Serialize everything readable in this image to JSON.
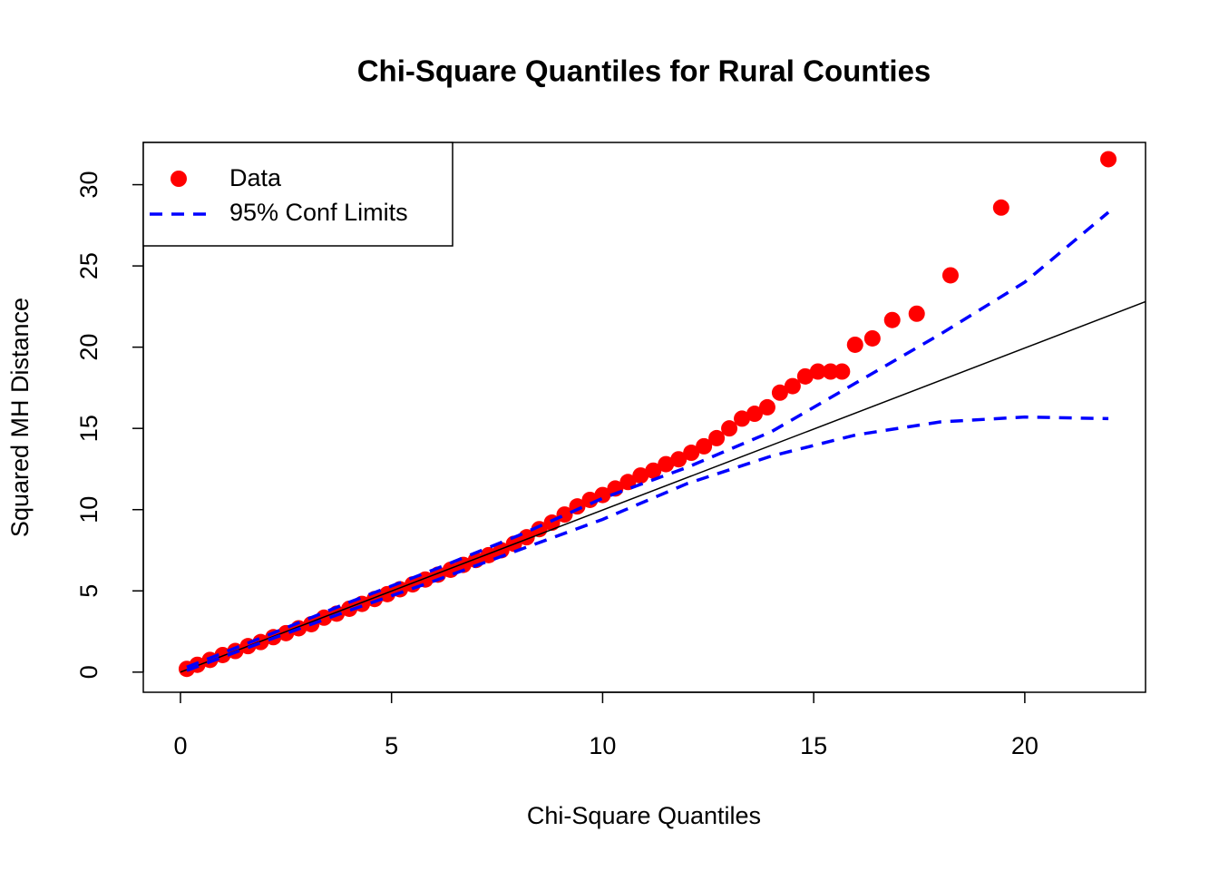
{
  "chart_data": {
    "type": "scatter",
    "title": "Chi-Square Quantiles for Rural Counties",
    "x_label": "Chi-Square Quantiles",
    "y_label": "Squared MH Distance",
    "xlim": [
      -0.88,
      22.86
    ],
    "ylim": [
      -1.24,
      32.6
    ],
    "xticks": [
      0,
      5,
      10,
      15,
      20
    ],
    "yticks": [
      0,
      5,
      10,
      15,
      20,
      25,
      30
    ],
    "legend": "top-left",
    "series": [
      {
        "name": "Data",
        "color": "#ff0000",
        "x": [
          0.15,
          0.4,
          0.7,
          1.0,
          1.3,
          1.6,
          1.9,
          2.2,
          2.5,
          2.8,
          3.1,
          3.4,
          3.7,
          4.0,
          4.3,
          4.6,
          4.9,
          5.2,
          5.5,
          5.8,
          6.1,
          6.4,
          6.7,
          7.0,
          7.3,
          7.6,
          7.9,
          8.2,
          8.5,
          8.8,
          9.1,
          9.4,
          9.7,
          10.0,
          10.3,
          10.6,
          10.9,
          11.2,
          11.5,
          11.8,
          12.1,
          12.4,
          12.7,
          13.0,
          13.3,
          13.6,
          13.9,
          14.2,
          14.5,
          14.8,
          15.1,
          15.4,
          15.67,
          15.98,
          16.39,
          16.86,
          17.44,
          18.24,
          19.44,
          21.98
        ],
        "values": [
          0.2,
          0.45,
          0.75,
          1.05,
          1.3,
          1.6,
          1.85,
          2.15,
          2.4,
          2.7,
          2.95,
          3.35,
          3.6,
          3.9,
          4.2,
          4.5,
          4.8,
          5.1,
          5.4,
          5.7,
          6.0,
          6.3,
          6.6,
          6.9,
          7.2,
          7.5,
          7.9,
          8.3,
          8.8,
          9.2,
          9.7,
          10.2,
          10.6,
          10.9,
          11.3,
          11.7,
          12.1,
          12.4,
          12.8,
          13.1,
          13.5,
          13.9,
          14.4,
          15.0,
          15.6,
          15.9,
          16.3,
          17.2,
          17.6,
          18.2,
          18.5,
          18.5,
          18.5,
          20.15,
          20.54,
          21.67,
          22.06,
          24.42,
          28.59,
          31.57
        ]
      },
      {
        "name": "95% Conf Limits",
        "color": "#0000ff",
        "x": [
          0.15,
          2,
          4,
          6,
          8,
          10,
          12,
          14,
          16,
          18,
          20,
          21.98
        ],
        "upper": [
          0.3,
          2.2,
          4.3,
          6.3,
          8.4,
          10.7,
          12.6,
          14.8,
          17.8,
          20.8,
          24.0,
          28.3
        ],
        "lower": [
          0.1,
          1.9,
          3.8,
          5.6,
          7.5,
          9.4,
          11.6,
          13.3,
          14.6,
          15.4,
          15.7,
          15.6
        ]
      }
    ],
    "reference_line": {
      "color": "#000000",
      "x": [
        0,
        22.86
      ],
      "y": [
        0,
        22.8
      ]
    }
  }
}
